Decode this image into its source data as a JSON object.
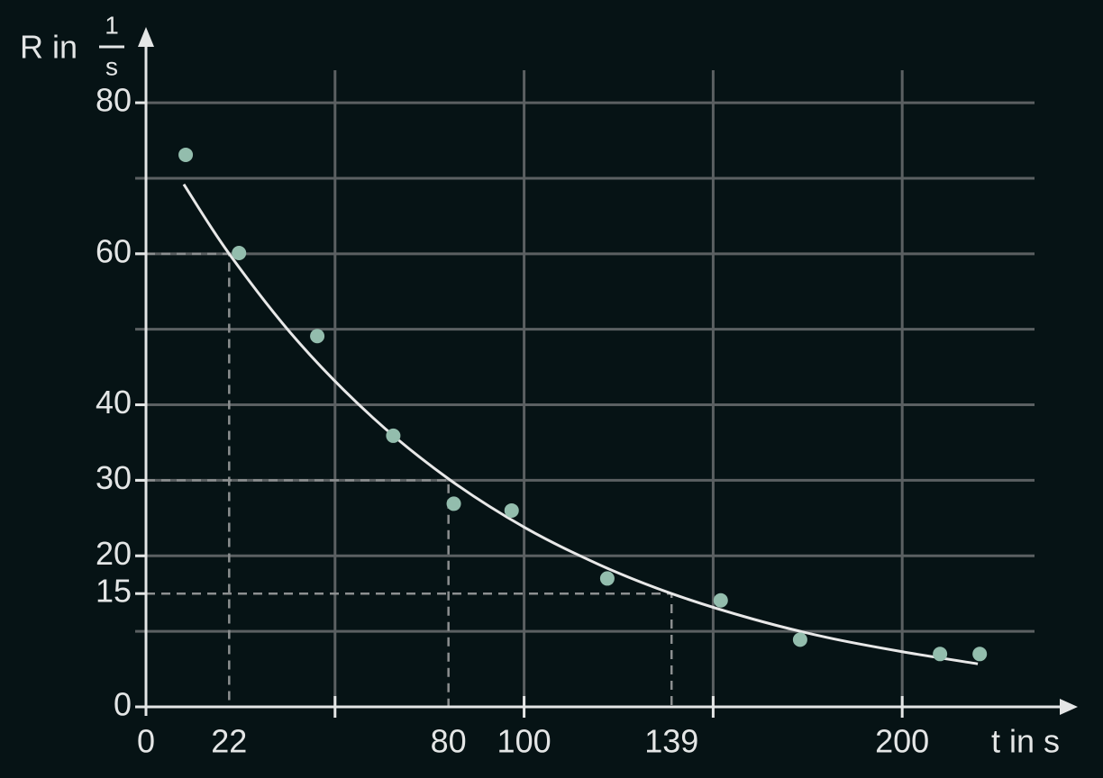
{
  "chart_data": {
    "type": "scatter",
    "x_label": "t in s",
    "y_label": {
      "text": "R in",
      "numerator": "1",
      "denominator": "s"
    },
    "xlim": [
      0,
      245
    ],
    "ylim": [
      0,
      88
    ],
    "xticks": [
      0,
      22,
      80,
      100,
      139,
      200
    ],
    "yticks": [
      0,
      15,
      20,
      30,
      40,
      60,
      80
    ],
    "xgrid": [
      50,
      100,
      150,
      200
    ],
    "ygrid": [
      10,
      20,
      30,
      40,
      50,
      60,
      70,
      80
    ],
    "grid": true,
    "series": [
      {
        "color": "#93bdad",
        "x": [
          10.5,
          24.6,
          45.3,
          65.4,
          81.4,
          96.7,
          122,
          152,
          173,
          210,
          220.5
        ],
        "values": [
          73.1,
          60.1,
          49.1,
          35.9,
          26.9,
          26.0,
          17.0,
          14.1,
          8.9,
          7.0,
          7.0
        ]
      }
    ],
    "fit": {
      "color": "#e8e8e8",
      "x": [
        10,
        22,
        40,
        60,
        80,
        100,
        120,
        139,
        160,
        180,
        200,
        220
      ],
      "values": [
        69.2,
        60,
        48.5,
        38.3,
        30.2,
        23.8,
        18.8,
        15.0,
        11.7,
        9.2,
        7.3,
        5.7
      ]
    },
    "guides": [
      {
        "x": 22,
        "y": 60
      },
      {
        "x": 80,
        "y": 30
      },
      {
        "x": 139,
        "y": 15
      }
    ]
  }
}
